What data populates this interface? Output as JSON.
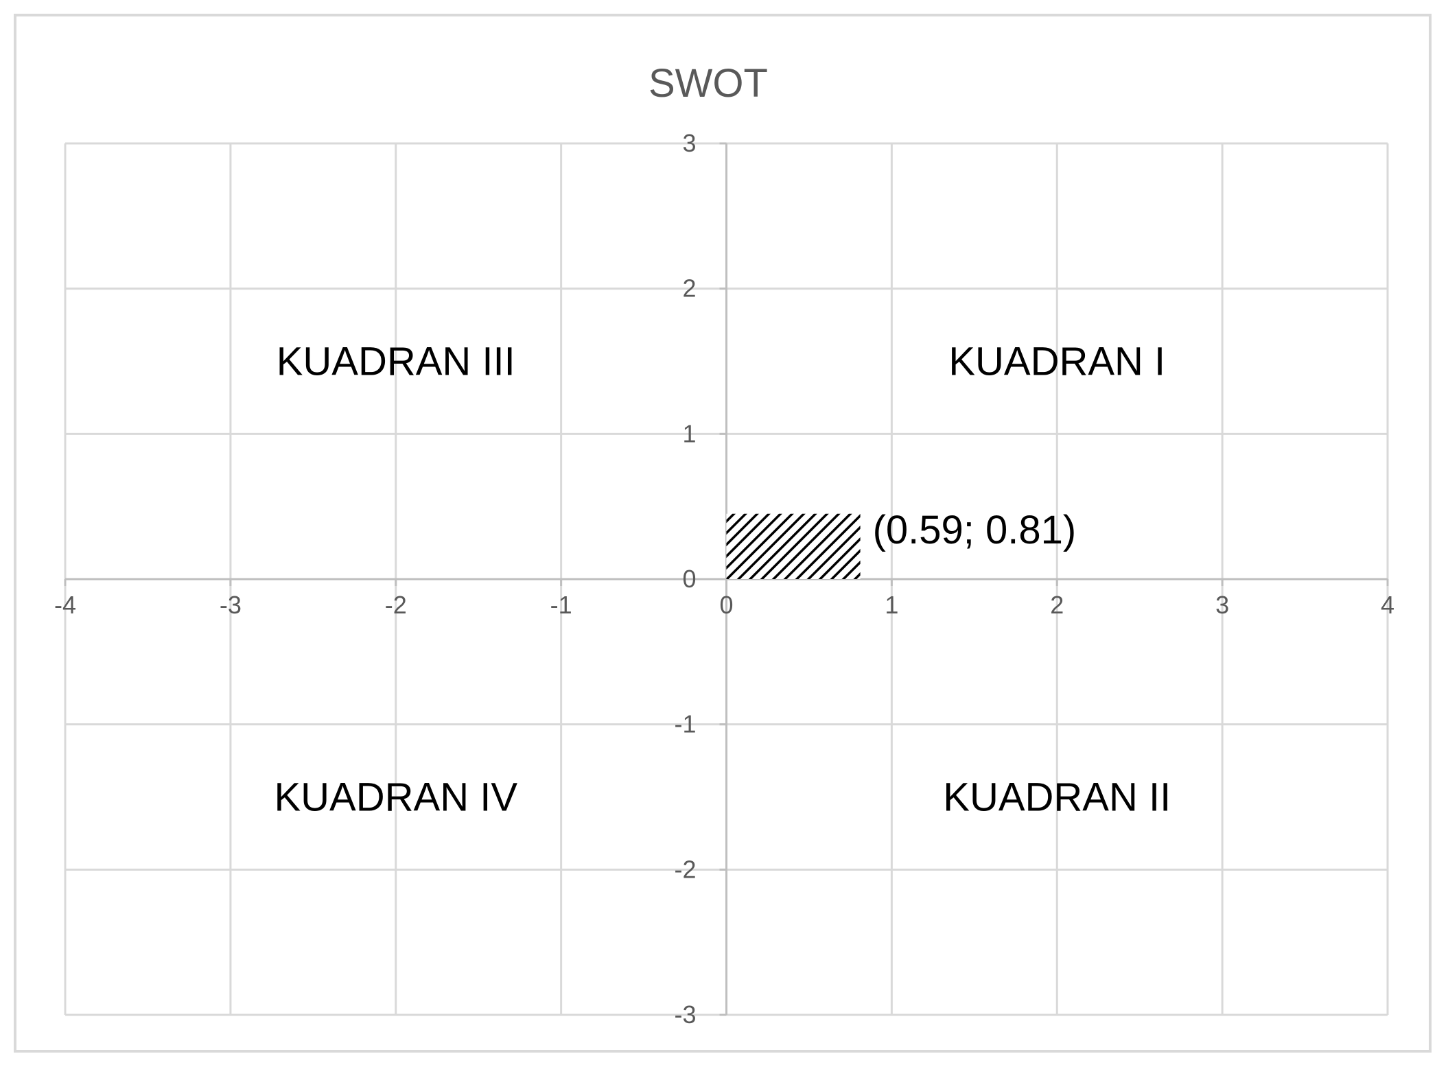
{
  "chart_data": {
    "type": "scatter",
    "title": "SWOT",
    "xlabel": "",
    "ylabel": "",
    "xlim": [
      -4,
      4
    ],
    "ylim": [
      -3,
      3
    ],
    "x_ticks": [
      -4,
      -3,
      -2,
      -1,
      0,
      1,
      2,
      3,
      4
    ],
    "y_ticks": [
      -3,
      -2,
      -1,
      0,
      1,
      2,
      3
    ],
    "grid": true,
    "legend": "none",
    "highlight_region": {
      "x0": 0,
      "x1": 0.81,
      "y0": 0,
      "y1": 0.45,
      "pattern": "diagonal-hatch"
    },
    "data_label": "(0.59; 0.81)",
    "quadrant_labels": [
      {
        "text": "KUADRAN I",
        "x": 2,
        "y": 1.5
      },
      {
        "text": "KUADRAN II",
        "x": 2,
        "y": -1.5
      },
      {
        "text": "KUADRAN III",
        "x": -2,
        "y": 1.5
      },
      {
        "text": "KUADRAN IV",
        "x": -2,
        "y": -1.5
      }
    ]
  },
  "colors": {
    "grid": "#d9d9d9",
    "axis": "#bfbfbf",
    "tick_text": "#595959",
    "title_text": "#595959",
    "label_text": "#000000",
    "hatch": "#000000"
  }
}
